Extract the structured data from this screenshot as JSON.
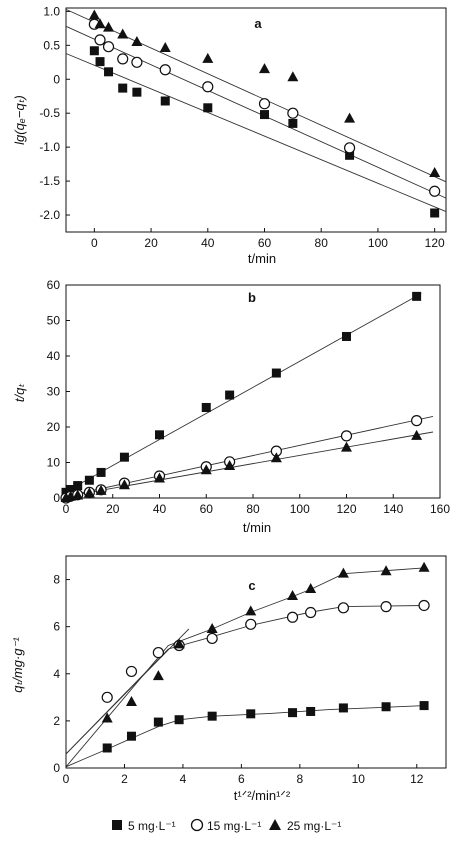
{
  "legend": {
    "entries": [
      {
        "label": "5 mg·L⁻¹",
        "marker": "square-filled"
      },
      {
        "label": "15 mg·L⁻¹",
        "marker": "circle-open"
      },
      {
        "label": "25 mg·L⁻¹",
        "marker": "triangle-filled"
      }
    ]
  },
  "chart_data": [
    {
      "type": "scatter",
      "panel_label": "a",
      "xlabel": "t/min",
      "ylabel": "lg(qₑ−qₜ)",
      "xlim": [
        -10,
        124
      ],
      "ylim": [
        -2.25,
        1.05
      ],
      "xticks": [
        0,
        20,
        40,
        60,
        80,
        100,
        120
      ],
      "yticks": [
        -2.0,
        -1.5,
        -1.0,
        -0.5,
        0,
        0.5,
        1.0
      ],
      "ytick_labels": [
        "-2.0",
        "-1.5",
        "-1.0",
        "-0.5",
        "0",
        "0.5",
        "1.0"
      ],
      "grid": false,
      "series": [
        {
          "marker": "square-filled",
          "x": [
            0,
            2,
            5,
            10,
            15,
            25,
            40,
            60,
            70,
            90,
            120
          ],
          "y": [
            0.42,
            0.26,
            0.11,
            -0.13,
            -0.19,
            -0.32,
            -0.42,
            -0.52,
            -0.65,
            -1.12,
            -1.97
          ],
          "fit": [
            [
              -10,
              0.38
            ],
            [
              124,
              -1.95
            ]
          ]
        },
        {
          "marker": "circle-open",
          "x": [
            0,
            2,
            5,
            10,
            15,
            25,
            40,
            60,
            70,
            90,
            120
          ],
          "y": [
            0.81,
            0.58,
            0.48,
            0.3,
            0.25,
            0.14,
            -0.11,
            -0.36,
            -0.5,
            -1.01,
            -1.65
          ],
          "fit": [
            [
              -10,
              0.78
            ],
            [
              124,
              -1.75
            ]
          ]
        },
        {
          "marker": "triangle-filled",
          "x": [
            0,
            2,
            5,
            10,
            15,
            25,
            40,
            60,
            70,
            90,
            120
          ],
          "y": [
            0.94,
            0.81,
            0.76,
            0.66,
            0.55,
            0.46,
            0.3,
            0.15,
            0.03,
            -0.58,
            -1.38
          ],
          "fit": [
            [
              -10,
              1.03
            ],
            [
              124,
              -1.51
            ]
          ]
        }
      ]
    },
    {
      "type": "scatter",
      "panel_label": "b",
      "xlabel": "t/min",
      "ylabel": "t/qₜ",
      "xlim": [
        0,
        160
      ],
      "ylim": [
        0,
        60
      ],
      "xticks": [
        0,
        20,
        40,
        60,
        80,
        100,
        120,
        140,
        160
      ],
      "yticks": [
        0,
        10,
        20,
        30,
        40,
        50,
        60
      ],
      "ytick_labels": [
        "0",
        "10",
        "20",
        "30",
        "40",
        "50",
        "60"
      ],
      "grid": false,
      "series": [
        {
          "marker": "square-filled",
          "x": [
            0,
            2,
            5,
            10,
            15,
            25,
            40,
            60,
            70,
            90,
            120,
            150
          ],
          "y": [
            1.6,
            2.4,
            3.5,
            5.0,
            7.2,
            11.5,
            17.8,
            25.5,
            29.0,
            35.2,
            45.5,
            56.8
          ],
          "fit": [
            [
              0,
              1.8
            ],
            [
              152,
              57.6
            ]
          ]
        },
        {
          "marker": "circle-open",
          "x": [
            0,
            2,
            5,
            10,
            15,
            25,
            40,
            60,
            70,
            90,
            120,
            150
          ],
          "y": [
            0.0,
            0.5,
            0.9,
            1.6,
            2.3,
            4.2,
            6.2,
            8.8,
            10.2,
            13.2,
            17.5,
            21.8
          ],
          "fit": [
            [
              5,
              1.2
            ],
            [
              157,
              23.0
            ]
          ]
        },
        {
          "marker": "triangle-filled",
          "x": [
            0,
            2,
            5,
            10,
            15,
            25,
            40,
            60,
            70,
            90,
            120,
            150
          ],
          "y": [
            0.0,
            0.4,
            0.7,
            1.3,
            2.0,
            3.6,
            5.5,
            7.8,
            9.0,
            11.2,
            14.2,
            17.5
          ],
          "fit": [
            [
              5,
              1.0
            ],
            [
              157,
              18.6
            ]
          ]
        }
      ]
    },
    {
      "type": "scatter",
      "panel_label": "c",
      "xlabel": "t¹ᐟ²/min¹ᐟ²",
      "ylabel": "qₜ/mg·g⁻¹",
      "xlim": [
        0,
        13
      ],
      "ylim": [
        0,
        9
      ],
      "xticks": [
        0,
        2,
        4,
        6,
        8,
        10,
        12
      ],
      "yticks": [
        0,
        2,
        4,
        6,
        8
      ],
      "ytick_labels": [
        "0",
        "2",
        "4",
        "6",
        "8"
      ],
      "grid": false,
      "series": [
        {
          "marker": "square-filled",
          "x": [
            1.41,
            2.24,
            3.16,
            3.87,
            5.0,
            6.32,
            7.75,
            8.37,
            9.49,
            10.95,
            12.25
          ],
          "y": [
            0.85,
            1.35,
            1.95,
            2.05,
            2.2,
            2.3,
            2.35,
            2.4,
            2.55,
            2.6,
            2.65
          ],
          "fit": [
            [
              0,
              0.05
            ],
            [
              0.5,
              0.32
            ],
            [
              1.5,
              0.85
            ],
            [
              2.5,
              1.4
            ],
            [
              3.2,
              1.78
            ],
            [
              3.9,
              2.05
            ],
            [
              5.0,
              2.2
            ],
            [
              7.0,
              2.32
            ],
            [
              9.0,
              2.48
            ],
            [
              12.3,
              2.65
            ]
          ]
        },
        {
          "marker": "circle-open",
          "x": [
            1.41,
            2.24,
            3.16,
            3.87,
            5.0,
            6.32,
            7.75,
            8.37,
            9.49,
            10.95,
            12.25
          ],
          "y": [
            3.0,
            4.1,
            4.9,
            5.2,
            5.5,
            6.1,
            6.4,
            6.6,
            6.8,
            6.85,
            6.9
          ],
          "fit": [
            [
              0,
              0.6
            ],
            [
              4.2,
              5.9
            ],
            [
              0,
              0.6
            ],
            [
              3.5,
              5.05
            ],
            [
              4.8,
              5.5
            ],
            [
              6.3,
              6.05
            ],
            [
              8.3,
              6.6
            ],
            [
              9.5,
              6.85
            ],
            [
              12.3,
              6.9
            ]
          ]
        },
        {
          "marker": "triangle-filled",
          "x": [
            1.41,
            2.24,
            3.16,
            3.87,
            5.0,
            6.32,
            7.75,
            8.37,
            9.49,
            10.95,
            12.25
          ],
          "y": [
            2.1,
            2.8,
            3.9,
            5.25,
            5.9,
            6.65,
            7.3,
            7.6,
            8.25,
            8.35,
            8.5
          ],
          "fit": [
            [
              0,
              0.05
            ],
            [
              3.5,
              5.2
            ],
            [
              5.0,
              5.9
            ],
            [
              6.3,
              6.6
            ],
            [
              7.8,
              7.3
            ],
            [
              8.4,
              7.6
            ],
            [
              9.5,
              8.25
            ],
            [
              12.3,
              8.5
            ]
          ]
        }
      ]
    }
  ]
}
